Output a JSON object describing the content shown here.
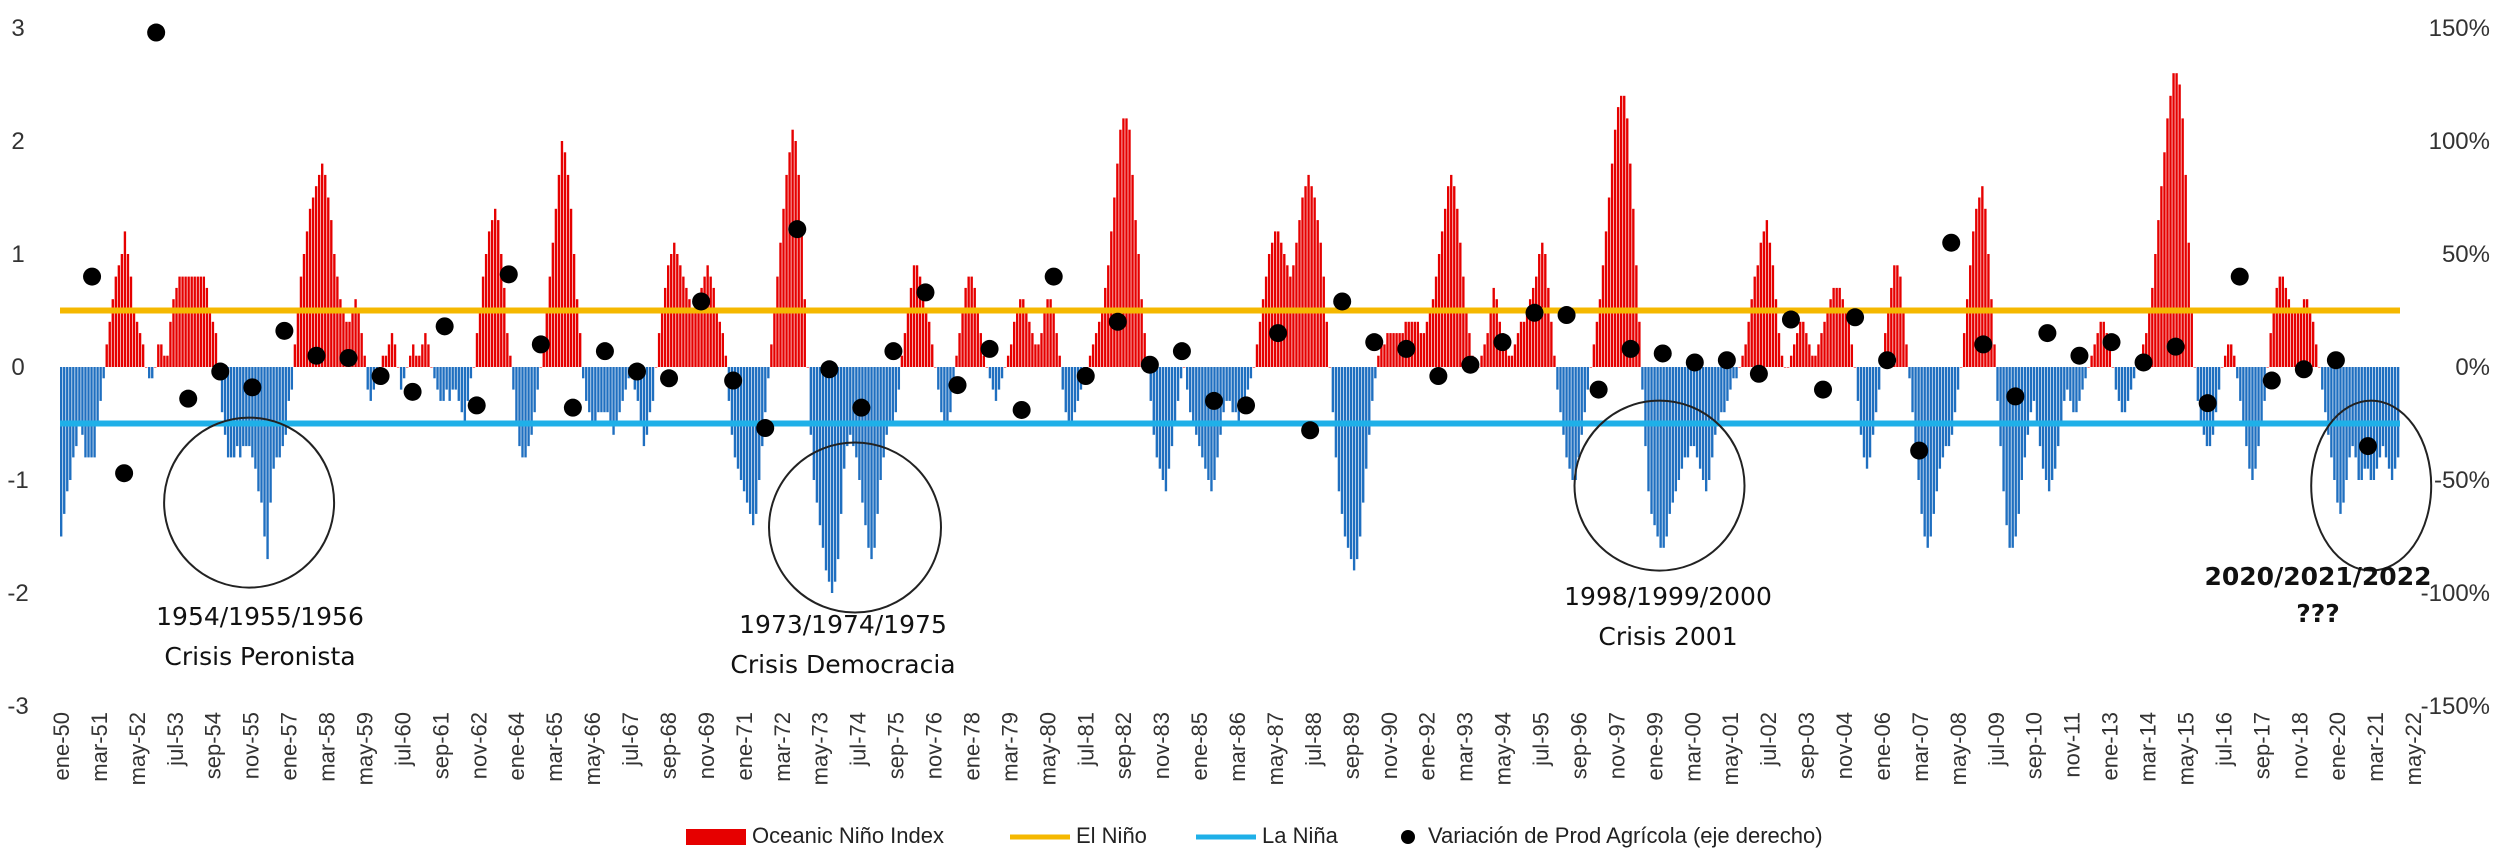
{
  "chart_data": {
    "type": "bar",
    "title": "",
    "left_axis": {
      "ylim": [
        -3,
        3
      ],
      "ticks": [
        "3",
        "2",
        "1",
        "0",
        "-1",
        "-2",
        "-3"
      ]
    },
    "right_axis": {
      "ylim": [
        -150,
        150
      ],
      "unit": "%",
      "ticks": [
        "150%",
        "100%",
        "50%",
        "0%",
        "-50%",
        "-100%",
        "-150%"
      ]
    },
    "x_tick_labels": [
      "ene-50",
      "mar-51",
      "may-52",
      "jul-53",
      "sep-54",
      "nov-55",
      "ene-57",
      "mar-58",
      "may-59",
      "jul-60",
      "sep-61",
      "nov-62",
      "ene-64",
      "mar-65",
      "may-66",
      "jul-67",
      "sep-68",
      "nov-69",
      "ene-71",
      "mar-72",
      "may-73",
      "jul-74",
      "sep-75",
      "nov-76",
      "ene-78",
      "mar-79",
      "may-80",
      "jul-81",
      "sep-82",
      "nov-83",
      "ene-85",
      "mar-86",
      "may-87",
      "jul-88",
      "sep-89",
      "nov-90",
      "ene-92",
      "mar-93",
      "may-94",
      "jul-95",
      "sep-96",
      "nov-97",
      "ene-99",
      "mar-00",
      "may-01",
      "jul-02",
      "sep-03",
      "nov-04",
      "ene-06",
      "mar-07",
      "may-08",
      "jul-09",
      "sep-10",
      "nov-11",
      "ene-13",
      "mar-14",
      "may-15",
      "jul-16",
      "sep-17",
      "nov-18",
      "ene-20",
      "mar-21",
      "may-22"
    ],
    "oni_series": {
      "name": "Oceanic Niño Index",
      "note_values": "3-monthly ONI values starting 1950",
      "start_year": 1950,
      "values": [
        -1.5,
        -1.3,
        -1.1,
        -1.0,
        -0.8,
        -0.7,
        -0.5,
        -0.6,
        -0.8,
        -0.8,
        -0.8,
        -0.8,
        -0.5,
        -0.3,
        -0.1,
        0.2,
        0.4,
        0.6,
        0.8,
        0.9,
        1.0,
        1.2,
        1.0,
        0.8,
        0.5,
        0.4,
        0.3,
        0.2,
        0.0,
        -0.1,
        -0.1,
        0.0,
        0.2,
        0.2,
        0.1,
        0.1,
        0.4,
        0.6,
        0.7,
        0.8,
        0.8,
        0.8,
        0.8,
        0.8,
        0.8,
        0.8,
        0.8,
        0.8,
        0.7,
        0.5,
        0.4,
        0.3,
        0.0,
        -0.4,
        -0.6,
        -0.8,
        -0.8,
        -0.8,
        -0.7,
        -0.8,
        -0.7,
        -0.7,
        -0.7,
        -0.8,
        -0.9,
        -1.1,
        -1.2,
        -1.5,
        -1.7,
        -1.2,
        -0.9,
        -0.8,
        -0.8,
        -0.7,
        -0.6,
        -0.3,
        -0.2,
        0.2,
        0.5,
        0.8,
        1.0,
        1.2,
        1.4,
        1.5,
        1.6,
        1.7,
        1.8,
        1.7,
        1.5,
        1.3,
        1.0,
        0.8,
        0.6,
        0.5,
        0.4,
        0.4,
        0.5,
        0.6,
        0.5,
        0.3,
        0.1,
        -0.2,
        -0.3,
        -0.2,
        -0.1,
        0.0,
        0.1,
        0.1,
        0.2,
        0.3,
        0.2,
        0.0,
        -0.2,
        -0.1,
        0.0,
        0.1,
        0.2,
        0.1,
        0.1,
        0.2,
        0.3,
        0.2,
        0.0,
        -0.1,
        -0.2,
        -0.3,
        -0.3,
        -0.2,
        -0.3,
        -0.2,
        -0.2,
        -0.3,
        -0.4,
        -0.5,
        -0.3,
        -0.1,
        0.0,
        0.3,
        0.5,
        0.8,
        1.0,
        1.2,
        1.3,
        1.4,
        1.3,
        1.0,
        0.7,
        0.3,
        0.1,
        -0.2,
        -0.5,
        -0.7,
        -0.8,
        -0.8,
        -0.7,
        -0.6,
        -0.4,
        -0.2,
        0.0,
        0.2,
        0.5,
        0.8,
        1.1,
        1.4,
        1.7,
        2.0,
        1.9,
        1.7,
        1.4,
        1.0,
        0.6,
        0.3,
        -0.1,
        -0.3,
        -0.4,
        -0.5,
        -0.5,
        -0.4,
        -0.4,
        -0.4,
        -0.4,
        -0.5,
        -0.6,
        -0.5,
        -0.4,
        -0.3,
        -0.2,
        -0.1,
        -0.1,
        -0.2,
        -0.3,
        -0.5,
        -0.7,
        -0.6,
        -0.4,
        -0.3,
        0.0,
        0.3,
        0.5,
        0.7,
        0.9,
        1.0,
        1.1,
        1.0,
        0.9,
        0.8,
        0.7,
        0.6,
        0.5,
        0.5,
        0.6,
        0.7,
        0.8,
        0.9,
        0.8,
        0.7,
        0.5,
        0.4,
        0.3,
        0.1,
        -0.3,
        -0.6,
        -0.8,
        -0.9,
        -1.0,
        -1.1,
        -1.2,
        -1.3,
        -1.4,
        -1.3,
        -1.0,
        -0.7,
        -0.4,
        -0.1,
        0.2,
        0.5,
        0.8,
        1.1,
        1.4,
        1.7,
        1.9,
        2.1,
        2.0,
        1.7,
        1.2,
        0.6,
        0.0,
        -0.6,
        -1.0,
        -1.2,
        -1.4,
        -1.6,
        -1.8,
        -1.9,
        -2.0,
        -1.9,
        -1.7,
        -1.3,
        -0.9,
        -0.7,
        -0.6,
        -0.7,
        -0.8,
        -1.0,
        -1.2,
        -1.4,
        -1.6,
        -1.7,
        -1.6,
        -1.3,
        -1.0,
        -0.8,
        -0.6,
        -0.5,
        -0.5,
        -0.4,
        -0.2,
        0.1,
        0.3,
        0.5,
        0.7,
        0.9,
        0.9,
        0.8,
        0.7,
        0.5,
        0.4,
        0.2,
        0.0,
        -0.2,
        -0.4,
        -0.5,
        -0.5,
        -0.4,
        -0.2,
        0.1,
        0.3,
        0.5,
        0.7,
        0.8,
        0.8,
        0.7,
        0.5,
        0.3,
        0.1,
        0.0,
        -0.1,
        -0.2,
        -0.3,
        -0.2,
        -0.1,
        0.0,
        0.1,
        0.2,
        0.4,
        0.5,
        0.6,
        0.6,
        0.5,
        0.4,
        0.3,
        0.2,
        0.2,
        0.3,
        0.5,
        0.6,
        0.6,
        0.5,
        0.3,
        0.1,
        -0.2,
        -0.4,
        -0.5,
        -0.5,
        -0.4,
        -0.3,
        -0.2,
        -0.1,
        0.0,
        0.1,
        0.2,
        0.3,
        0.4,
        0.5,
        0.7,
        0.9,
        1.2,
        1.5,
        1.8,
        2.1,
        2.2,
        2.2,
        2.1,
        1.7,
        1.3,
        1.0,
        0.6,
        0.3,
        0.0,
        -0.3,
        -0.6,
        -0.8,
        -0.9,
        -1.0,
        -1.1,
        -0.9,
        -0.7,
        -0.5,
        -0.3,
        -0.1,
        0.0,
        -0.2,
        -0.4,
        -0.5,
        -0.6,
        -0.7,
        -0.8,
        -0.9,
        -1.0,
        -1.1,
        -1.0,
        -0.8,
        -0.6,
        -0.4,
        -0.3,
        -0.3,
        -0.4,
        -0.4,
        -0.5,
        -0.4,
        -0.3,
        -0.2,
        -0.1,
        0.0,
        0.2,
        0.4,
        0.6,
        0.8,
        1.0,
        1.1,
        1.2,
        1.2,
        1.1,
        1.0,
        0.9,
        0.8,
        0.9,
        1.1,
        1.3,
        1.5,
        1.6,
        1.7,
        1.6,
        1.5,
        1.3,
        1.1,
        0.8,
        0.4,
        0.0,
        -0.4,
        -0.8,
        -1.1,
        -1.3,
        -1.5,
        -1.6,
        -1.7,
        -1.8,
        -1.7,
        -1.5,
        -1.2,
        -0.9,
        -0.6,
        -0.3,
        -0.1,
        0.1,
        0.2,
        0.2,
        0.3,
        0.3,
        0.3,
        0.3,
        0.3,
        0.3,
        0.4,
        0.4,
        0.4,
        0.4,
        0.4,
        0.3,
        0.3,
        0.4,
        0.5,
        0.6,
        0.8,
        1.0,
        1.2,
        1.4,
        1.6,
        1.7,
        1.6,
        1.4,
        1.1,
        0.8,
        0.5,
        0.3,
        0.1,
        0.0,
        0.0,
        0.1,
        0.2,
        0.3,
        0.5,
        0.7,
        0.6,
        0.4,
        0.3,
        0.2,
        0.1,
        0.1,
        0.2,
        0.3,
        0.4,
        0.4,
        0.5,
        0.6,
        0.7,
        0.8,
        1.0,
        1.1,
        1.0,
        0.7,
        0.4,
        0.1,
        -0.2,
        -0.4,
        -0.6,
        -0.8,
        -0.9,
        -1.0,
        -1.0,
        -0.8,
        -0.6,
        -0.4,
        -0.2,
        0.0,
        0.2,
        0.4,
        0.6,
        0.9,
        1.2,
        1.5,
        1.8,
        2.1,
        2.3,
        2.4,
        2.4,
        2.2,
        1.8,
        1.4,
        0.9,
        0.4,
        -0.2,
        -0.7,
        -1.1,
        -1.3,
        -1.4,
        -1.5,
        -1.6,
        -1.6,
        -1.5,
        -1.3,
        -1.2,
        -1.1,
        -1.0,
        -0.9,
        -0.8,
        -0.8,
        -0.7,
        -0.7,
        -0.8,
        -0.9,
        -1.0,
        -1.1,
        -1.0,
        -0.8,
        -0.6,
        -0.5,
        -0.4,
        -0.4,
        -0.3,
        -0.2,
        -0.1,
        -0.1,
        0.0,
        0.1,
        0.2,
        0.4,
        0.6,
        0.8,
        0.9,
        1.1,
        1.2,
        1.3,
        1.1,
        0.9,
        0.6,
        0.3,
        0.1,
        0.0,
        0.0,
        0.1,
        0.2,
        0.3,
        0.4,
        0.4,
        0.3,
        0.2,
        0.1,
        0.1,
        0.2,
        0.3,
        0.4,
        0.5,
        0.6,
        0.7,
        0.7,
        0.7,
        0.6,
        0.5,
        0.4,
        0.2,
        0.0,
        -0.3,
        -0.6,
        -0.8,
        -0.9,
        -0.8,
        -0.6,
        -0.4,
        -0.2,
        0.1,
        0.3,
        0.5,
        0.7,
        0.9,
        0.9,
        0.8,
        0.5,
        0.2,
        -0.1,
        -0.4,
        -0.7,
        -1.0,
        -1.3,
        -1.5,
        -1.6,
        -1.5,
        -1.3,
        -1.1,
        -0.9,
        -0.8,
        -0.7,
        -0.7,
        -0.6,
        -0.4,
        -0.2,
        0.0,
        0.3,
        0.6,
        0.9,
        1.2,
        1.4,
        1.5,
        1.6,
        1.4,
        1.0,
        0.6,
        0.2,
        -0.3,
        -0.7,
        -1.1,
        -1.4,
        -1.6,
        -1.6,
        -1.5,
        -1.3,
        -1.0,
        -0.8,
        -0.6,
        -0.4,
        -0.3,
        -0.5,
        -0.7,
        -0.9,
        -1.0,
        -1.1,
        -1.0,
        -0.9,
        -0.7,
        -0.5,
        -0.3,
        -0.2,
        -0.3,
        -0.4,
        -0.4,
        -0.3,
        -0.2,
        -0.1,
        0.0,
        0.1,
        0.2,
        0.3,
        0.4,
        0.4,
        0.3,
        0.2,
        0.0,
        -0.2,
        -0.3,
        -0.4,
        -0.4,
        -0.3,
        -0.2,
        -0.1,
        0.0,
        0.1,
        0.2,
        0.3,
        0.5,
        0.7,
        1.0,
        1.3,
        1.6,
        1.9,
        2.2,
        2.4,
        2.6,
        2.6,
        2.5,
        2.2,
        1.7,
        1.1,
        0.5,
        0.0,
        -0.3,
        -0.5,
        -0.6,
        -0.7,
        -0.7,
        -0.6,
        -0.4,
        -0.2,
        0.0,
        0.1,
        0.2,
        0.2,
        0.1,
        -0.1,
        -0.3,
        -0.5,
        -0.7,
        -0.9,
        -1.0,
        -0.9,
        -0.7,
        -0.5,
        -0.3,
        0.0,
        0.3,
        0.5,
        0.7,
        0.8,
        0.8,
        0.7,
        0.6,
        0.5,
        0.5,
        0.5,
        0.5,
        0.6,
        0.6,
        0.5,
        0.4,
        0.2,
        0.0,
        -0.2,
        -0.4,
        -0.6,
        -0.8,
        -1.0,
        -1.2,
        -1.3,
        -1.2,
        -1.0,
        -0.8,
        -0.7,
        -0.8,
        -1.0,
        -1.0,
        -0.9,
        -0.9,
        -1.0,
        -1.0,
        -0.9,
        -0.8,
        -0.7,
        -0.8,
        -0.9,
        -1.0,
        -0.9,
        -0.8
      ]
    },
    "el_nino_threshold": {
      "name": "El Niño",
      "value": 0.5,
      "color": "#f5b800"
    },
    "la_nina_threshold": {
      "name": "La Niña",
      "value": -0.5,
      "color": "#1fb0e8"
    },
    "agro_series": {
      "name": "Variación de Prod Agrícola (eje derecho)",
      "axis": "right",
      "start_year": 1950,
      "values": [
        40,
        -47,
        148,
        -14,
        -2,
        -9,
        16,
        5,
        4,
        -4,
        -11,
        18,
        -17,
        41,
        10,
        -18,
        7,
        -2,
        -5,
        29,
        -6,
        -27,
        61,
        -1,
        -18,
        7,
        33,
        -8,
        8,
        -19,
        40,
        -4,
        20,
        1,
        7,
        -15,
        -17,
        15,
        -28,
        29,
        11,
        8,
        -4,
        1,
        11,
        24,
        23,
        -10,
        8,
        6,
        2,
        3,
        -3,
        21,
        -10,
        22,
        3,
        -37,
        55,
        10,
        -13,
        15,
        5,
        11,
        2,
        9,
        -16,
        40,
        -6,
        -1,
        3,
        -35
      ]
    },
    "annotations": [
      {
        "line1": "1954/1955/1956",
        "line2": "Crisis Peronista"
      },
      {
        "line1": "1973/1974/1975",
        "line2": "Crisis Democracia"
      },
      {
        "line1": "1998/1999/2000",
        "line2": "Crisis 2001"
      },
      {
        "line1": "2020/2021/2022",
        "line2": "???"
      }
    ],
    "legend": [
      {
        "name": "Oceanic Niño Index",
        "color": "#e60000",
        "kind": "bar"
      },
      {
        "name": "El Niño",
        "color": "#f5b800",
        "kind": "line"
      },
      {
        "name": "La Niña",
        "color": "#1fb0e8",
        "kind": "line"
      },
      {
        "name": "Variación de Prod Agrícola (eje derecho)",
        "color": "#000000",
        "kind": "dot"
      }
    ],
    "colors": {
      "positive_bar": "#e60000",
      "negative_bar": "#1f6fc0"
    }
  }
}
